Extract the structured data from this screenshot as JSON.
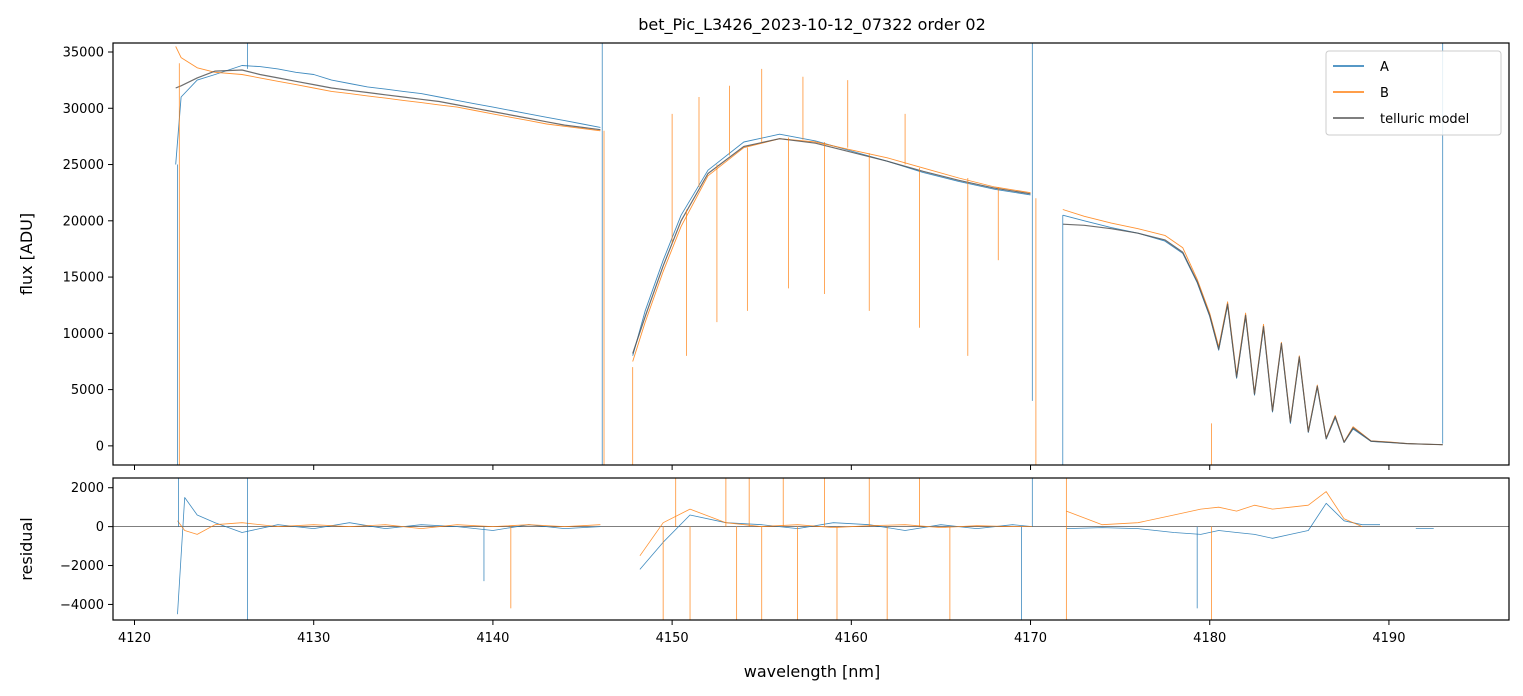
{
  "chart_data": [
    {
      "type": "line",
      "panel": "top",
      "title": "bet_Pic_L3426_2023-10-12_07322  order 02",
      "xlabel": "",
      "ylabel": "flux [ADU]",
      "xlim": [
        4118.8,
        4196.7
      ],
      "ylim": [
        -1700,
        35800
      ],
      "xticks": [
        4120,
        4130,
        4140,
        4150,
        4160,
        4170,
        4180,
        4190
      ],
      "yticks": [
        0,
        5000,
        10000,
        15000,
        20000,
        25000,
        30000,
        35000
      ],
      "ytick_labels": [
        "0",
        "5000",
        "10000",
        "15000",
        "20000",
        "25000",
        "30000",
        "35000"
      ],
      "legend_position": "top-right",
      "series": [
        {
          "name": "A",
          "color": "#1f77b4",
          "x": [
            4122.3,
            4122.6,
            4123.5,
            4124.5,
            4126,
            4127,
            4128,
            4129,
            4130,
            4131,
            4132,
            4133,
            4134,
            4135,
            4136,
            4137,
            4138,
            4139,
            4140,
            4141,
            4142,
            4143,
            4144,
            4145,
            4146,
            null,
            4147.8,
            4148.5,
            4149.5,
            4150.5,
            4152,
            4154,
            4156,
            4158,
            4160,
            4162,
            4164,
            4166,
            4168,
            4170,
            null,
            4171.8,
            4173,
            4174.5,
            4176,
            4177.5,
            4178.5,
            4179.3,
            4180,
            4180.5,
            4181,
            4181.5,
            4182,
            4182.5,
            4183,
            4183.5,
            4184,
            4184.5,
            4185,
            4185.5,
            4186,
            4186.5,
            4187,
            4187.5,
            4188,
            4189,
            4190,
            4191,
            4192,
            4193
          ],
          "y": [
            25000,
            31000,
            32500,
            33000,
            33800,
            33700,
            33500,
            33200,
            33000,
            32500,
            32200,
            31900,
            31700,
            31500,
            31300,
            31000,
            30700,
            30400,
            30100,
            29800,
            29500,
            29200,
            28900,
            28600,
            28300,
            null,
            8000,
            12000,
            16500,
            20500,
            24500,
            27000,
            27700,
            27100,
            26200,
            25300,
            24300,
            23500,
            22800,
            22300,
            null,
            20500,
            20000,
            19400,
            18900,
            18200,
            17100,
            14500,
            11500,
            8500,
            12500,
            6000,
            11500,
            4500,
            10500,
            3000,
            9000,
            2000,
            7800,
            1200,
            5200,
            600,
            2500,
            300,
            1500,
            400,
            300,
            200,
            150,
            100
          ]
        },
        {
          "name": "B",
          "color": "#ff7f0e",
          "x": [
            4122.3,
            4122.6,
            4123.5,
            4124.5,
            4126,
            4127,
            4128,
            4129,
            4130,
            4131,
            4132,
            4133,
            4134,
            4135,
            4136,
            4137,
            4138,
            4139,
            4140,
            4141,
            4142,
            4143,
            4144,
            4145,
            4146,
            null,
            4147.8,
            4148.5,
            4149.5,
            4150.5,
            4152,
            4154,
            4156,
            4158,
            4160,
            4162,
            4164,
            4166,
            4168,
            4170,
            null,
            4171.8,
            4173,
            4174.5,
            4176,
            4177.5,
            4178.5,
            4179.3,
            4180,
            4180.5,
            4181,
            4181.5,
            4182,
            4182.5,
            4183,
            4183.5,
            4184,
            4184.5,
            4185,
            4185.5,
            4186,
            4186.5,
            4187,
            4187.5,
            4188,
            4189,
            4190,
            4191,
            4192,
            4193
          ],
          "y": [
            35500,
            34500,
            33600,
            33200,
            33000,
            32700,
            32400,
            32100,
            31800,
            31500,
            31300,
            31100,
            30900,
            30700,
            30500,
            30300,
            30100,
            29800,
            29500,
            29200,
            28900,
            28600,
            28400,
            28200,
            28000,
            null,
            7500,
            11000,
            15500,
            19500,
            24000,
            26500,
            27300,
            27000,
            26300,
            25600,
            24700,
            23800,
            23000,
            22500,
            null,
            21000,
            20400,
            19800,
            19300,
            18700,
            17600,
            14800,
            11800,
            8800,
            12800,
            6300,
            11800,
            4700,
            10800,
            3200,
            9200,
            2200,
            8000,
            1300,
            5400,
            700,
            2700,
            350,
            1700,
            450,
            350,
            200,
            150,
            100
          ]
        },
        {
          "name": "telluric model",
          "color": "#555555",
          "x": [
            4122.3,
            4122.6,
            4123.5,
            4124.5,
            4126,
            4127,
            4128,
            4129,
            4130,
            4131,
            4132,
            4133,
            4134,
            4135,
            4136,
            4137,
            4138,
            4139,
            4140,
            4141,
            4142,
            4143,
            4144,
            4145,
            4146,
            null,
            4147.8,
            4148.5,
            4149.5,
            4150.5,
            4152,
            4154,
            4156,
            4158,
            4160,
            4162,
            4164,
            4166,
            4168,
            4170,
            null,
            4171.8,
            4173,
            4174.5,
            4176,
            4177.5,
            4178.5,
            4179.3,
            4180,
            4180.5,
            4181,
            4181.5,
            4182,
            4182.5,
            4183,
            4183.5,
            4184,
            4184.5,
            4185,
            4185.5,
            4186,
            4186.5,
            4187,
            4187.5,
            4188,
            4189,
            4190,
            4191,
            4192,
            4193
          ],
          "y": [
            31800,
            32000,
            32700,
            33300,
            33400,
            33000,
            32700,
            32400,
            32100,
            31800,
            31600,
            31400,
            31200,
            31000,
            30800,
            30600,
            30300,
            30000,
            29700,
            29400,
            29100,
            28800,
            28500,
            28300,
            28100,
            null,
            8200,
            11500,
            16000,
            20000,
            24200,
            26600,
            27300,
            26900,
            26100,
            25300,
            24400,
            23600,
            22900,
            22400,
            null,
            19700,
            19600,
            19300,
            18900,
            18300,
            17200,
            14600,
            11600,
            8600,
            12600,
            6100,
            11600,
            4600,
            10600,
            3100,
            9100,
            2100,
            7900,
            1250,
            5300,
            650,
            2600,
            320,
            1600,
            420,
            320,
            200,
            150,
            100
          ]
        }
      ],
      "spikes": [
        {
          "series": "A",
          "x": 4122.4,
          "from": 25000,
          "to": -1700
        },
        {
          "series": "B",
          "x": 4122.5,
          "from": 34000,
          "to": -1700
        },
        {
          "series": "A",
          "x": 4126.3,
          "from": 33500,
          "to": 35800
        },
        {
          "series": "A",
          "x": 4146.1,
          "from": 28000,
          "to": 35800
        },
        {
          "series": "A",
          "x": 4146.1,
          "from": 28000,
          "to": -1700
        },
        {
          "series": "B",
          "x": 4146.2,
          "from": 28000,
          "to": -1700
        },
        {
          "series": "B",
          "x": 4147.8,
          "from": 7000,
          "to": -1700
        },
        {
          "series": "B",
          "x": 4150.0,
          "from": 18000,
          "to": 29500
        },
        {
          "series": "B",
          "x": 4150.8,
          "from": 21000,
          "to": 8000
        },
        {
          "series": "B",
          "x": 4151.5,
          "from": 23000,
          "to": 31000
        },
        {
          "series": "B",
          "x": 4152.5,
          "from": 25000,
          "to": 11000
        },
        {
          "series": "B",
          "x": 4153.2,
          "from": 25800,
          "to": 32000
        },
        {
          "series": "B",
          "x": 4154.2,
          "from": 26500,
          "to": 12000
        },
        {
          "series": "B",
          "x": 4155.0,
          "from": 27000,
          "to": 33500
        },
        {
          "series": "B",
          "x": 4156.5,
          "from": 27400,
          "to": 14000
        },
        {
          "series": "B",
          "x": 4157.3,
          "from": 27200,
          "to": 32800
        },
        {
          "series": "B",
          "x": 4158.5,
          "from": 27000,
          "to": 13500
        },
        {
          "series": "B",
          "x": 4159.8,
          "from": 26500,
          "to": 32500
        },
        {
          "series": "B",
          "x": 4161.0,
          "from": 26000,
          "to": 12000
        },
        {
          "series": "B",
          "x": 4163.0,
          "from": 25000,
          "to": 29500
        },
        {
          "series": "B",
          "x": 4163.8,
          "from": 24700,
          "to": 10500
        },
        {
          "series": "B",
          "x": 4166.5,
          "from": 23800,
          "to": 8000
        },
        {
          "series": "B",
          "x": 4168.2,
          "from": 23000,
          "to": 16500
        },
        {
          "series": "A",
          "x": 4170.1,
          "from": 22300,
          "to": 35800
        },
        {
          "series": "A",
          "x": 4170.1,
          "from": 22300,
          "to": 4000
        },
        {
          "series": "B",
          "x": 4170.3,
          "from": 22000,
          "to": -1700
        },
        {
          "series": "A",
          "x": 4171.8,
          "from": 20500,
          "to": -1700
        },
        {
          "series": "B",
          "x": 4180.1,
          "from": 2000,
          "to": -1700
        },
        {
          "series": "A",
          "x": 4193.0,
          "from": 200,
          "to": 35800
        }
      ]
    },
    {
      "type": "line",
      "panel": "bottom",
      "title": "",
      "xlabel": "wavelength [nm]",
      "ylabel": "residual",
      "xlim": [
        4118.8,
        4196.7
      ],
      "ylim": [
        -4800,
        2500
      ],
      "xticks": [
        4120,
        4130,
        4140,
        4150,
        4160,
        4170,
        4180,
        4190
      ],
      "xtick_labels": [
        "4120",
        "4130",
        "4140",
        "4150",
        "4160",
        "4170",
        "4180",
        "4190"
      ],
      "yticks": [
        -4000,
        -2000,
        0,
        2000
      ],
      "ytick_labels": [
        "−4000",
        "−2000",
        "0",
        "2000"
      ],
      "zero_line": 0,
      "series": [
        {
          "name": "A",
          "color": "#1f77b4",
          "x": [
            4122.4,
            4122.8,
            4123.5,
            4124.5,
            4126,
            4128,
            4130,
            4132,
            4134,
            4136,
            4138,
            4140,
            4142,
            4144,
            4146,
            null,
            4148.2,
            4149.5,
            4151,
            4153,
            4155,
            4157,
            4159,
            4161,
            4163,
            4165,
            4167,
            4169,
            4170.1,
            null,
            4172,
            4174,
            4176,
            4178,
            4179.5,
            4180.5,
            4181.5,
            4182.5,
            4183.5,
            4184.5,
            4185.5,
            4186.5,
            4187.5,
            4188.5,
            4189.5,
            null,
            4191.5,
            4192.5
          ],
          "y": [
            -4500,
            1500,
            600,
            200,
            -300,
            100,
            -100,
            200,
            -100,
            100,
            0,
            -200,
            100,
            -100,
            0,
            null,
            -2200,
            -800,
            600,
            200,
            100,
            -100,
            200,
            100,
            -200,
            100,
            -100,
            100,
            0,
            null,
            -100,
            -50,
            -100,
            -300,
            -400,
            -200,
            -300,
            -400,
            -600,
            -400,
            -200,
            1200,
            300,
            100,
            100,
            null,
            -100,
            -100
          ]
        },
        {
          "name": "B",
          "color": "#ff7f0e",
          "x": [
            4122.4,
            4122.8,
            4123.5,
            4124.5,
            4126,
            4128,
            4130,
            4132,
            4134,
            4136,
            4138,
            4140,
            4142,
            4144,
            4146,
            null,
            4148.2,
            4149.5,
            4151,
            4153,
            4155,
            4157,
            4159,
            4161,
            4163,
            4165,
            4167,
            4169,
            4170.1,
            null,
            4172,
            4174,
            4176,
            4178,
            4179.5,
            4180.5,
            4181.5,
            4182.5,
            4183.5,
            4184.5,
            4185.5,
            4186.5,
            4187.5,
            4188.5
          ],
          "y": [
            300,
            -200,
            -400,
            100,
            200,
            0,
            100,
            0,
            100,
            -100,
            100,
            0,
            100,
            0,
            100,
            null,
            -1500,
            200,
            900,
            200,
            0,
            100,
            -50,
            50,
            100,
            -50,
            50,
            0,
            0,
            null,
            800,
            100,
            200,
            600,
            900,
            1000,
            800,
            1100,
            900,
            1000,
            1100,
            1800,
            400,
            0
          ]
        }
      ],
      "spikes": [
        {
          "series": "A",
          "x": 4122.45,
          "from": 0,
          "to": 2500
        },
        {
          "series": "A",
          "x": 4126.3,
          "from": 0,
          "to": 2500
        },
        {
          "series": "A",
          "x": 4126.3,
          "from": 0,
          "to": -4800
        },
        {
          "series": "B",
          "x": 4141.0,
          "from": 0,
          "to": -4200
        },
        {
          "series": "A",
          "x": 4139.5,
          "from": 0,
          "to": -2800
        },
        {
          "series": "B",
          "x": 4149.5,
          "from": 0,
          "to": -4800
        },
        {
          "series": "B",
          "x": 4150.2,
          "from": 0,
          "to": 2500
        },
        {
          "series": "B",
          "x": 4151.0,
          "from": 0,
          "to": -4800
        },
        {
          "series": "B",
          "x": 4153.0,
          "from": 0,
          "to": 2500
        },
        {
          "series": "B",
          "x": 4153.6,
          "from": 0,
          "to": -4800
        },
        {
          "series": "B",
          "x": 4154.3,
          "from": 0,
          "to": 2500
        },
        {
          "series": "B",
          "x": 4155.0,
          "from": 0,
          "to": -4800
        },
        {
          "series": "B",
          "x": 4156.2,
          "from": 0,
          "to": 2500
        },
        {
          "series": "B",
          "x": 4157.0,
          "from": 0,
          "to": -4800
        },
        {
          "series": "B",
          "x": 4158.5,
          "from": 0,
          "to": 2500
        },
        {
          "series": "B",
          "x": 4159.2,
          "from": 0,
          "to": -4800
        },
        {
          "series": "B",
          "x": 4161.0,
          "from": 0,
          "to": 2500
        },
        {
          "series": "B",
          "x": 4162.0,
          "from": 0,
          "to": -4800
        },
        {
          "series": "B",
          "x": 4163.8,
          "from": 0,
          "to": 2500
        },
        {
          "series": "B",
          "x": 4165.5,
          "from": 0,
          "to": -4800
        },
        {
          "series": "A",
          "x": 4169.5,
          "from": 0,
          "to": -4800
        },
        {
          "series": "A",
          "x": 4170.1,
          "from": 0,
          "to": 2500
        },
        {
          "series": "B",
          "x": 4172.0,
          "from": 0,
          "to": -4800
        },
        {
          "series": "B",
          "x": 4172.0,
          "from": 0,
          "to": 2500
        },
        {
          "series": "A",
          "x": 4179.3,
          "from": 0,
          "to": -4200
        },
        {
          "series": "B",
          "x": 4180.1,
          "from": 0,
          "to": -4800
        }
      ]
    }
  ]
}
